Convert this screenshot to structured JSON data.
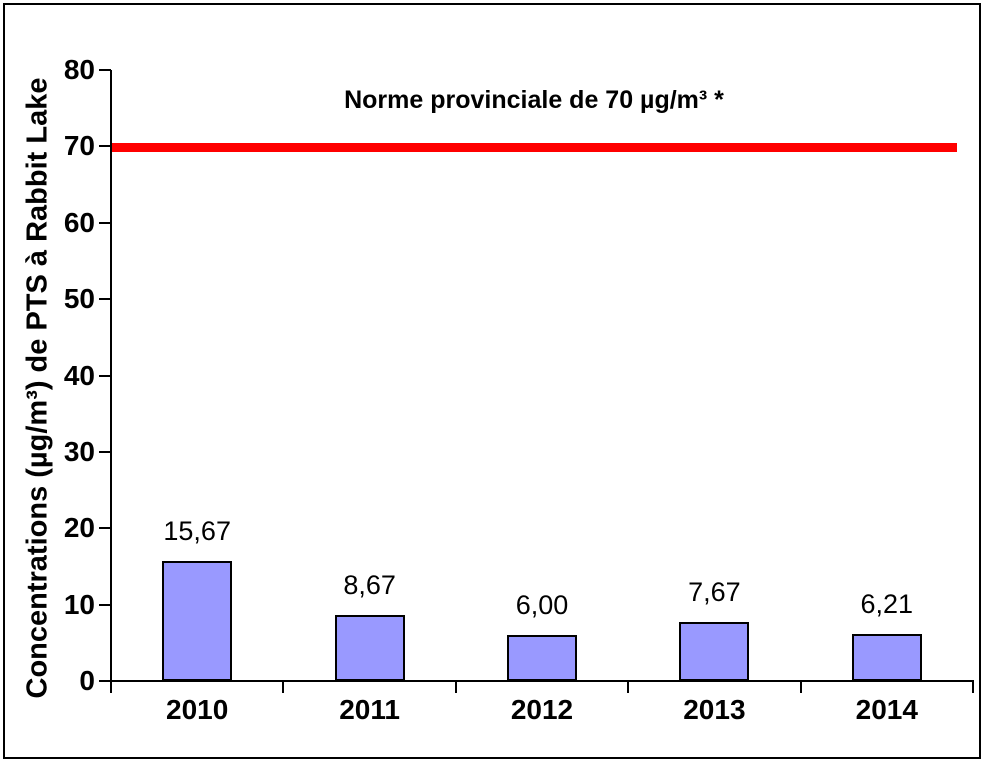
{
  "figure": {
    "background": "#FFFFFF",
    "frame_border_color": "#000000"
  },
  "chart_data": {
    "type": "bar",
    "categories": [
      "2010",
      "2011",
      "2012",
      "2013",
      "2014"
    ],
    "values": [
      15.67,
      8.67,
      6.0,
      7.67,
      6.21
    ],
    "value_labels": [
      "15,67",
      "8,67",
      "6,00",
      "7,67",
      "6,21"
    ],
    "title": "",
    "xlabel": "",
    "ylabel": "Concentrations (µg/m³) de PTS à Rabbit Lake",
    "ylim": [
      0,
      80
    ],
    "yticks": [
      0,
      10,
      20,
      30,
      40,
      50,
      60,
      70,
      80
    ],
    "grid": false,
    "legend": false,
    "bar_fill": "#9999FF",
    "bar_border": "#000000",
    "axis_color": "#000000",
    "reference_line": {
      "value": 70,
      "label": "Norme provinciale de 70 µg/m³ *",
      "color": "#FF0000"
    }
  }
}
